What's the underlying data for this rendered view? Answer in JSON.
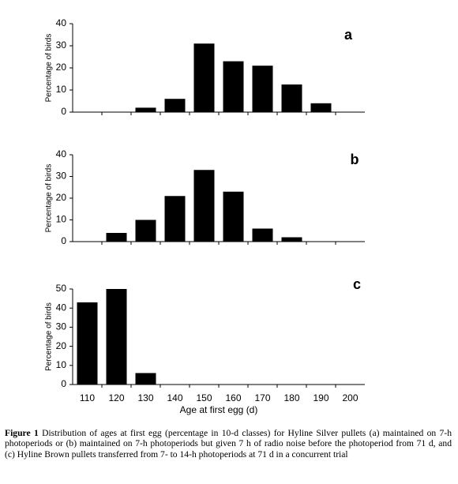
{
  "chart_data": [
    {
      "type": "bar",
      "panel_label": "a",
      "ylabel": "Percentage of birds",
      "values": [
        0,
        0,
        2,
        6,
        31,
        23,
        21,
        12.5,
        4,
        0
      ],
      "color": "#000000",
      "ylim": [
        0,
        40
      ],
      "yticks": [
        0,
        10,
        20,
        30,
        40
      ]
    },
    {
      "type": "bar",
      "panel_label": "b",
      "ylabel": "Percentage of birds",
      "values": [
        0,
        4,
        10,
        21,
        33,
        23,
        6,
        2,
        0,
        0
      ],
      "color": "#000000",
      "ylim": [
        0,
        40
      ],
      "yticks": [
        0,
        10,
        20,
        30,
        40
      ]
    },
    {
      "type": "bar",
      "panel_label": "c",
      "ylabel": "Percentage of birds",
      "xlabel": "Age at first egg (d)",
      "categories": [
        "110",
        "120",
        "130",
        "140",
        "150",
        "160",
        "170",
        "180",
        "190",
        "200"
      ],
      "values": [
        43,
        50,
        6,
        0,
        0,
        0,
        0,
        0,
        0,
        0
      ],
      "color": "#000000",
      "ylim": [
        0,
        50
      ],
      "yticks": [
        0,
        10,
        20,
        30,
        40,
        50
      ]
    }
  ],
  "caption": {
    "label": "Figure 1",
    "text": "Distribution of ages at first egg (percentage in 10-d classes) for Hyline Silver pullets (a) maintained on 7-h photoperiods or (b) maintained on 7-h photoperiods but given 7 h of radio noise before the photoperiod from 71 d, and (c) Hyline Brown pullets transferred from 7- to 14-h photoperiods at 71 d in a concurrent trial"
  }
}
